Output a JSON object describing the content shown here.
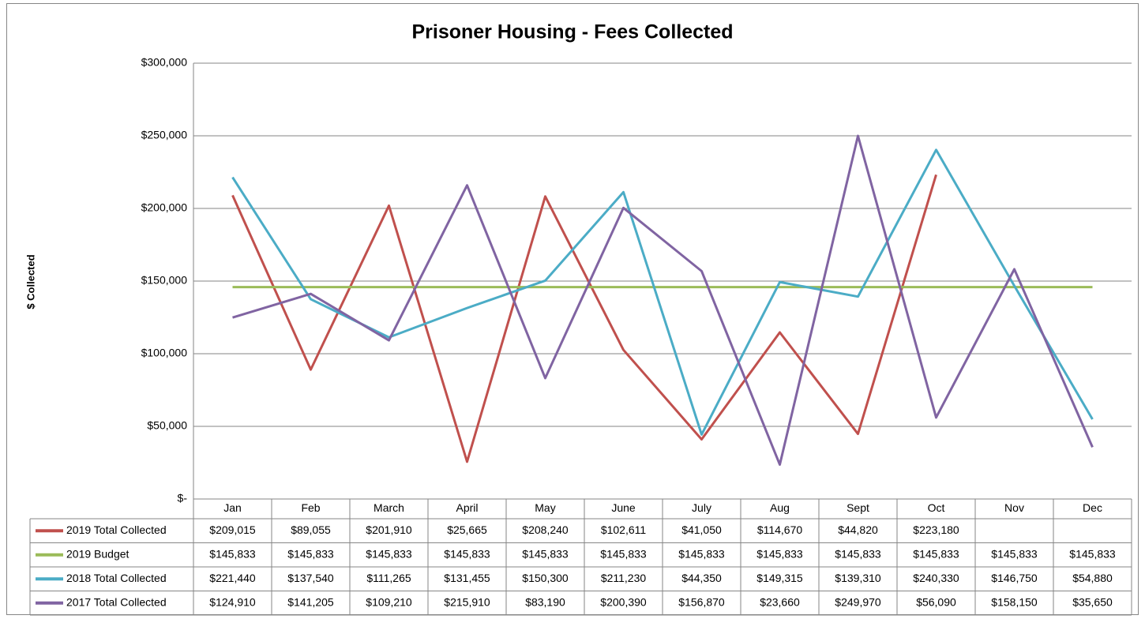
{
  "chart_data": {
    "type": "line",
    "title": "Prisoner Housing - Fees Collected",
    "y_label": "$ Collected",
    "categories": [
      "Jan",
      "Feb",
      "March",
      "April",
      "May",
      "June",
      "July",
      "Aug",
      "Sept",
      "Oct",
      "Nov",
      "Dec"
    ],
    "ylim": [
      0,
      300000
    ],
    "yticks": [
      {
        "value": 0,
        "label": "$-"
      },
      {
        "value": 50000,
        "label": "$50,000"
      },
      {
        "value": 100000,
        "label": "$100,000"
      },
      {
        "value": 150000,
        "label": "$150,000"
      },
      {
        "value": 200000,
        "label": "$200,000"
      },
      {
        "value": 250000,
        "label": "$250,000"
      },
      {
        "value": 300000,
        "label": "$300,000"
      }
    ],
    "grid": true,
    "series": [
      {
        "name": "2019 Total Collected",
        "color": "#c0504d",
        "values": [
          209015,
          89055,
          201910,
          25665,
          208240,
          102611,
          41050,
          114670,
          44820,
          223180,
          null,
          null
        ],
        "value_labels": [
          "$209,015",
          "$89,055",
          "$201,910",
          "$25,665",
          "$208,240",
          "$102,611",
          "$41,050",
          "$114,670",
          "$44,820",
          "$223,180",
          null,
          null
        ]
      },
      {
        "name": "2019 Budget",
        "color": "#9bbb59",
        "values": [
          145833,
          145833,
          145833,
          145833,
          145833,
          145833,
          145833,
          145833,
          145833,
          145833,
          145833,
          145833
        ],
        "value_labels": [
          "$145,833",
          "$145,833",
          "$145,833",
          "$145,833",
          "$145,833",
          "$145,833",
          "$145,833",
          "$145,833",
          "$145,833",
          "$145,833",
          "$145,833",
          "$145,833"
        ]
      },
      {
        "name": "2018 Total Collected",
        "color": "#4bacc6",
        "values": [
          221440,
          137540,
          111265,
          131455,
          150300,
          211230,
          44350,
          149315,
          139310,
          240330,
          146750,
          54880
        ],
        "value_labels": [
          "$221,440",
          "$137,540",
          "$111,265",
          "$131,455",
          "$150,300",
          "$211,230",
          "$44,350",
          "$149,315",
          "$139,310",
          "$240,330",
          "$146,750",
          "$54,880"
        ]
      },
      {
        "name": "2017 Total Collected",
        "color": "#8064a2",
        "values": [
          124910,
          141205,
          109210,
          215910,
          83190,
          200390,
          156870,
          23660,
          249970,
          56090,
          158150,
          35650
        ],
        "value_labels": [
          "$124,910",
          "$141,205",
          "$109,210",
          "$215,910",
          "$83,190",
          "$200,390",
          "$156,870",
          "$23,660",
          "$249,970",
          "$56,090",
          "$158,150",
          "$35,650"
        ]
      }
    ]
  }
}
